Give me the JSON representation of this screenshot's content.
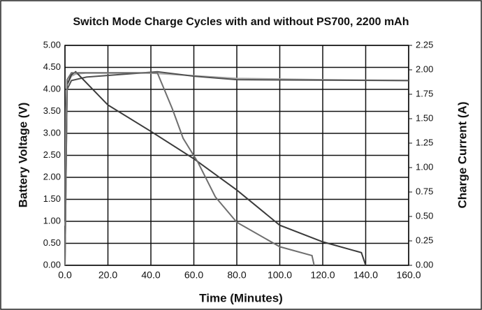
{
  "chart_data": {
    "type": "line",
    "title": "Switch Mode Charge Cycles with and without PS700, 2200 mAh",
    "xlabel": "Time (Minutes)",
    "ylabel": "Battery Voltage (V)",
    "y2label": "Charge Current (A)",
    "grid": true,
    "xlim": [
      0,
      160
    ],
    "xticks": [
      {
        "value": 0,
        "label": "0.0"
      },
      {
        "value": 20,
        "label": "20.0"
      },
      {
        "value": 40,
        "label": "40.0"
      },
      {
        "value": 60,
        "label": "60.0"
      },
      {
        "value": 80,
        "label": "80.0"
      },
      {
        "value": 100,
        "label": "100.0"
      },
      {
        "value": 120,
        "label": "120.0"
      },
      {
        "value": 140,
        "label": "140.0"
      },
      {
        "value": 160,
        "label": "160.0"
      }
    ],
    "ylim": [
      0,
      5
    ],
    "yticks": [
      {
        "value": 0,
        "label": "0.00"
      },
      {
        "value": 0.5,
        "label": "0.50"
      },
      {
        "value": 1,
        "label": "1.00"
      },
      {
        "value": 1.5,
        "label": "1.50"
      },
      {
        "value": 2,
        "label": "2.00"
      },
      {
        "value": 2.5,
        "label": "2.50"
      },
      {
        "value": 3,
        "label": "3.00"
      },
      {
        "value": 3.5,
        "label": "3.50"
      },
      {
        "value": 4,
        "label": "4.00"
      },
      {
        "value": 4.5,
        "label": "4.50"
      },
      {
        "value": 5,
        "label": "5.00"
      }
    ],
    "y2lim": [
      0,
      2.25
    ],
    "y2ticks": [
      {
        "value": 0,
        "label": "0.00"
      },
      {
        "value": 0.25,
        "label": "0.25"
      },
      {
        "value": 0.5,
        "label": "0.50"
      },
      {
        "value": 0.75,
        "label": "0.75"
      },
      {
        "value": 1,
        "label": "1.00"
      },
      {
        "value": 1.25,
        "label": "1.25"
      },
      {
        "value": 1.5,
        "label": "1.50"
      },
      {
        "value": 1.75,
        "label": "1.75"
      },
      {
        "value": 2,
        "label": "2.00"
      },
      {
        "value": 2.25,
        "label": "2.25"
      }
    ],
    "series": [
      {
        "color": "#a9a9a9",
        "axis": "y",
        "x": [
          0,
          0.5,
          1,
          2,
          3,
          5,
          10,
          40,
          80,
          120,
          160
        ],
        "values": [
          0.9,
          3.5,
          4.1,
          4.2,
          4.3,
          4.35,
          4.37,
          4.37,
          4.25,
          4.22,
          4.2
        ]
      },
      {
        "color": "#505050",
        "axis": "y",
        "x": [
          0,
          1,
          3,
          10,
          43,
          60,
          80,
          160
        ],
        "values": [
          1.0,
          4.0,
          4.2,
          4.28,
          4.4,
          4.3,
          4.22,
          4.2
        ]
      },
      {
        "color": "#3a3a3a",
        "axis": "y2",
        "x": [
          0,
          1,
          3,
          5,
          20,
          40,
          60,
          80,
          100,
          120,
          138,
          140
        ],
        "values": [
          0,
          1.85,
          1.95,
          1.98,
          1.64,
          1.37,
          1.09,
          0.77,
          0.41,
          0.24,
          0.13,
          0
        ]
      },
      {
        "color": "#6e6e6e",
        "axis": "y2",
        "x": [
          0,
          1,
          3,
          43,
          50,
          55,
          62,
          70,
          80,
          100,
          115,
          116
        ],
        "values": [
          0,
          1.9,
          1.97,
          1.97,
          1.6,
          1.3,
          1.05,
          0.7,
          0.44,
          0.19,
          0.1,
          0
        ]
      }
    ]
  }
}
